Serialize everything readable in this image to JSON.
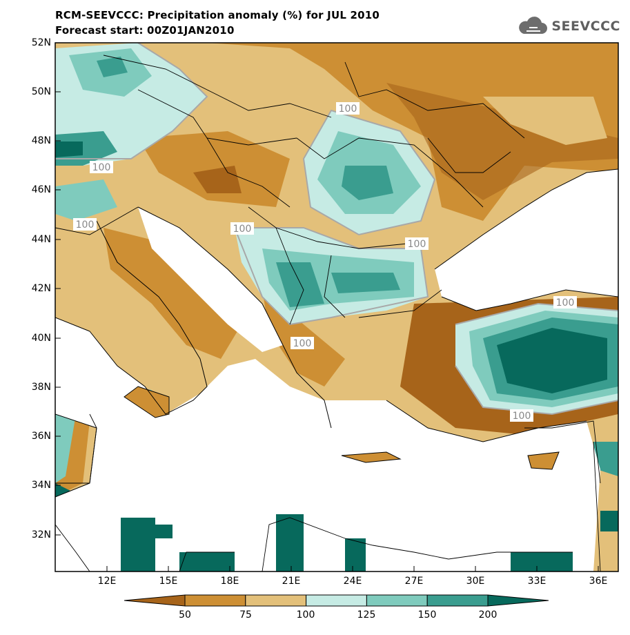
{
  "title_line1": "RCM-SEEVCCC: Precipitation anomaly (%) for JUL 2010",
  "title_line2": "Forecast start: 00Z01JAN2010",
  "logo": {
    "text": "SEEVCCC",
    "icon": "cloud-icon"
  },
  "lat_labels": [
    "52N",
    "50N",
    "48N",
    "46N",
    "44N",
    "42N",
    "40N",
    "38N",
    "36N",
    "34N",
    "32N"
  ],
  "lon_labels": [
    "12E",
    "15E",
    "18E",
    "21E",
    "24E",
    "27E",
    "30E",
    "33E",
    "36E"
  ],
  "contour_label": "100",
  "colorbar": {
    "colors": [
      "#a7641a",
      "#cd8f34",
      "#e3c07a",
      "#c6ebe4",
      "#7fcbbd",
      "#3a9d8f",
      "#07695c"
    ],
    "labels": [
      "50",
      "75",
      "100",
      "125",
      "150",
      "200"
    ]
  },
  "colors": {
    "sea": "#ffffff",
    "water_fill": "#ffffff",
    "coast": "#000000"
  }
}
